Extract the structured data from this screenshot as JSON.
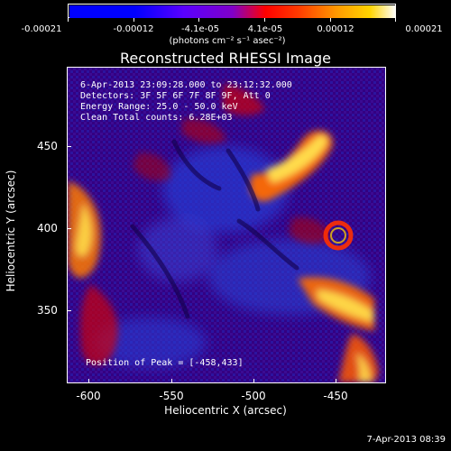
{
  "colorbar": {
    "tick_labels": [
      "-0.00021",
      "-0.00012",
      "-4.1e-05",
      "4.1e-05",
      "0.00012",
      "0.00021"
    ],
    "units_text": "(photons cm⁻² s⁻¹ asec⁻²)",
    "range": [
      -0.00021,
      0.00021
    ],
    "colors": [
      "#000000",
      "#0000ff",
      "#7a00ff",
      "#ff0000",
      "#ffb000",
      "#ffffff"
    ]
  },
  "plot": {
    "title": "Reconstructed RHESSI Image",
    "header_lines": [
      "6-Apr-2013 23:09:28.000 to 23:12:32.000",
      "Detectors: 3F 5F 6F 7F 8F 9F, Att 0",
      "Energy Range: 25.0 - 50.0 keV",
      "Clean     Total counts: 6.28E+03"
    ],
    "footer_text": "Position of Peak = [-458,433]",
    "x_axis": {
      "label": "Heliocentric X (arcsec)",
      "ticks": [
        "-600",
        "-550",
        "-500",
        "-450"
      ],
      "range": [
        -610,
        -420
      ]
    },
    "y_axis": {
      "label": "Heliocentric Y (arcsec)",
      "ticks": [
        "350",
        "400",
        "450"
      ],
      "range": [
        305,
        500
      ]
    },
    "image_colors": {
      "background": "#2d0078",
      "blue": "#2436d8",
      "purple": "#6a2bc4",
      "red": "#d80000",
      "orange": "#ff7a00",
      "yellow": "#ffe14a",
      "white": "#fff8c8"
    }
  },
  "timestamp": "7-Apr-2013 08:39"
}
